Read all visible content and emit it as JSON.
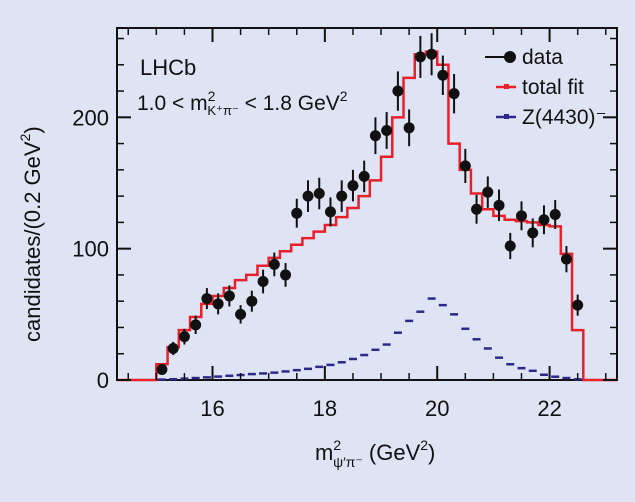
{
  "chart_data": {
    "type": "histogram-fit",
    "experiment_label": "LHCb",
    "cut_label": {
      "pre": "1.0 < m",
      "sup": "2",
      "sub": "K⁺π⁻",
      "post": " < 1.8 GeV",
      "post_sup": "2"
    },
    "xlabel": {
      "main": "m",
      "sup": "2",
      "sub": "ψ′π⁻",
      "post": " (GeV",
      "post_sup": "2",
      "close": ")"
    },
    "ylabel": {
      "main": "candidates/(0.2 GeV",
      "sup": "2",
      "close": ")"
    },
    "xlim": [
      14.3,
      23.2
    ],
    "ylim": [
      0,
      268
    ],
    "x_ticks": [
      16,
      18,
      20,
      22
    ],
    "x_tick_labels": [
      "16",
      "18",
      "20",
      "22"
    ],
    "y_ticks": [
      0,
      100,
      200
    ],
    "y_tick_labels": [
      "0",
      "100",
      "200"
    ],
    "legend": [
      {
        "label": "data",
        "marker": "dot",
        "color": "#111111"
      },
      {
        "label": "total fit",
        "marker": "step",
        "color": "#e8202a"
      },
      {
        "label": "Z(4430)⁻",
        "marker": "dash",
        "color": "#2b2a8a"
      }
    ],
    "series": [
      {
        "name": "data",
        "type": "points-with-errors",
        "x": [
          15.1,
          15.3,
          15.5,
          15.7,
          15.9,
          16.1,
          16.3,
          16.5,
          16.7,
          16.9,
          17.1,
          17.3,
          17.5,
          17.7,
          17.9,
          18.1,
          18.3,
          18.5,
          18.7,
          18.9,
          19.1,
          19.3,
          19.5,
          19.7,
          19.9,
          20.1,
          20.3,
          20.5,
          20.7,
          20.9,
          21.1,
          21.3,
          21.5,
          21.7,
          21.9,
          22.1,
          22.3,
          22.5
        ],
        "y": [
          8,
          24,
          33,
          42,
          62,
          58,
          64,
          50,
          60,
          75,
          88,
          80,
          127,
          140,
          142,
          128,
          140,
          148,
          155,
          186,
          190,
          220,
          192,
          246,
          248,
          232,
          218,
          163,
          130,
          143,
          133,
          102,
          125,
          112,
          122,
          126,
          92,
          57
        ],
        "yerr": [
          4,
          5,
          6,
          7,
          8,
          8,
          8,
          7,
          8,
          9,
          9,
          9,
          11,
          12,
          12,
          11,
          12,
          12,
          12,
          14,
          14,
          15,
          14,
          16,
          16,
          15,
          15,
          13,
          11,
          12,
          12,
          10,
          11,
          11,
          11,
          11,
          10,
          8
        ]
      },
      {
        "name": "total fit",
        "type": "step",
        "bin_width": 0.2,
        "x": [
          15.1,
          15.3,
          15.5,
          15.7,
          15.9,
          16.1,
          16.3,
          16.5,
          16.7,
          16.9,
          17.1,
          17.3,
          17.5,
          17.7,
          17.9,
          18.1,
          18.3,
          18.5,
          18.7,
          18.9,
          19.1,
          19.3,
          19.5,
          19.7,
          19.9,
          20.1,
          20.3,
          20.5,
          20.7,
          20.9,
          21.1,
          21.3,
          21.5,
          21.7,
          21.9,
          22.1,
          22.3,
          22.5
        ],
        "y": [
          12,
          25,
          38,
          48,
          58,
          64,
          70,
          76,
          80,
          87,
          93,
          98,
          103,
          108,
          113,
          118,
          124,
          131,
          140,
          152,
          170,
          200,
          230,
          248,
          250,
          240,
          180,
          160,
          142,
          130,
          125,
          122,
          121,
          120,
          118,
          117,
          96,
          38
        ]
      },
      {
        "name": "Z(4430)⁻",
        "type": "markers-dash",
        "x": [
          15.1,
          15.3,
          15.5,
          15.7,
          15.9,
          16.1,
          16.3,
          16.5,
          16.7,
          16.9,
          17.1,
          17.3,
          17.5,
          17.7,
          17.9,
          18.1,
          18.3,
          18.5,
          18.7,
          18.9,
          19.1,
          19.3,
          19.5,
          19.7,
          19.9,
          20.1,
          20.3,
          20.5,
          20.7,
          20.9,
          21.1,
          21.3,
          21.5,
          21.7,
          21.9,
          22.1,
          22.3,
          22.5
        ],
        "y": [
          0.3,
          0.6,
          1,
          1.5,
          2,
          2.6,
          3.2,
          3.8,
          4.5,
          5,
          5.6,
          6.5,
          7.5,
          8.5,
          10,
          11.5,
          13.5,
          16,
          19,
          23,
          27,
          36,
          45,
          52,
          62,
          57,
          50,
          39,
          31,
          24,
          17,
          12,
          9,
          7,
          4,
          2.5,
          1.5,
          0.5
        ]
      }
    ],
    "colors": {
      "background": "#dfe4f4",
      "frame": "#111111",
      "fit": "#e8202a",
      "z": "#2b2a8a",
      "data": "#111111"
    }
  }
}
